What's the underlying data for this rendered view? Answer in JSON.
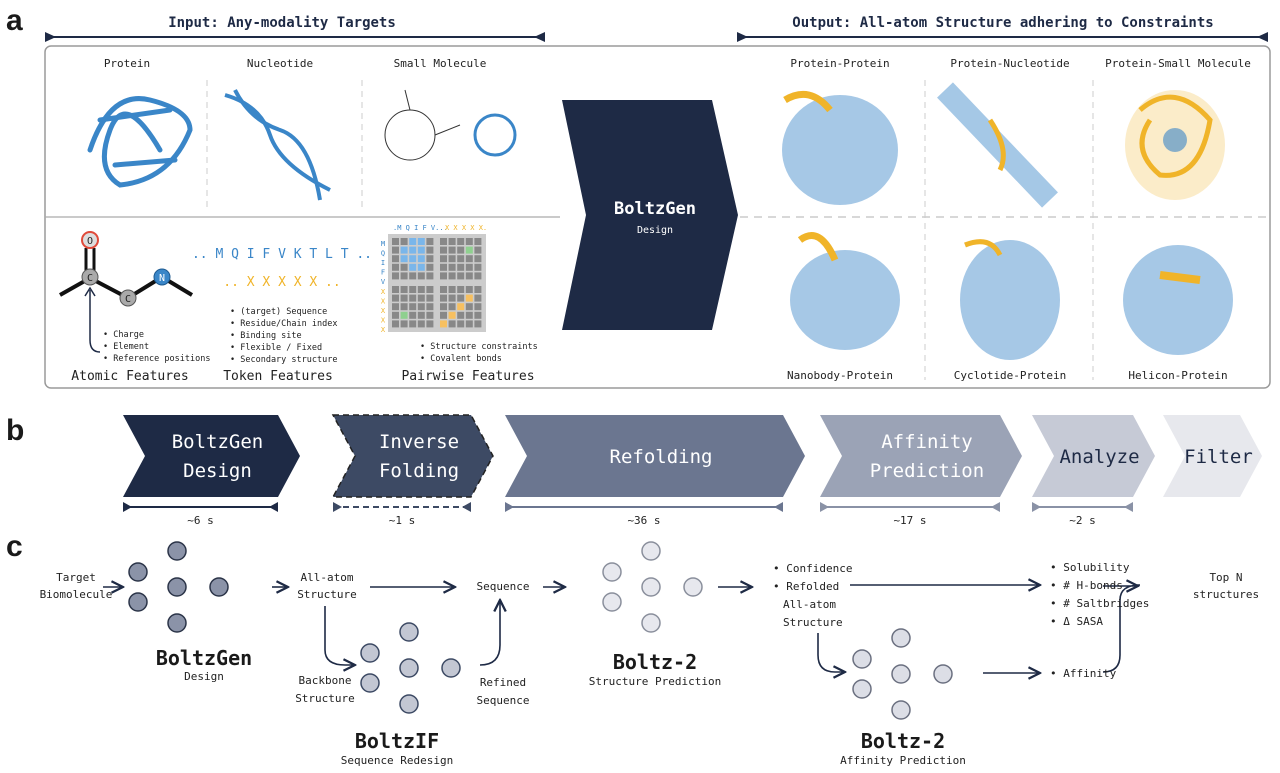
{
  "panel_labels": [
    "a",
    "b",
    "c"
  ],
  "a": {
    "input_header": "Input: Any-modality Targets",
    "output_header": "Output: All-atom Structure adhering to Constraints",
    "inputs": [
      "Protein",
      "Nucleotide",
      "Small Molecule"
    ],
    "outputs_top": [
      "Protein-Protein",
      "Protein-Nucleotide",
      "Protein-Small Molecule"
    ],
    "outputs_bottom": [
      "Nanobody-Protein",
      "Cyclotide-Protein",
      "Helicon-Protein"
    ],
    "center": {
      "title": "BoltzGen",
      "subtitle": "Design"
    },
    "atoms": {
      "o": "O",
      "c1": "C",
      "c2": "C",
      "n": "N"
    },
    "atomic": {
      "title": "Atomic Features",
      "items": [
        "• Charge",
        "• Element",
        "• Reference positions"
      ]
    },
    "token": {
      "title": "Token Features",
      "seq": ".. M Q I F V K T L T ..",
      "mask": ".. X X X X X ..",
      "items": [
        "• (target) Sequence",
        "• Residue/Chain index",
        "• Binding site",
        "• Flexible / Fixed",
        "• Secondary structure"
      ]
    },
    "pairwise": {
      "title": "Pairwise Features",
      "top_seq": ".M Q I F V...",
      "top_mask": "X X X X X.",
      "left_seq": "MQIFV",
      "left_mask": "XXXXX",
      "items": [
        "• Structure constraints",
        "• Covalent bonds"
      ]
    },
    "colors": {
      "protein": "#3a86c8",
      "binder": "#f0b429",
      "dark": "#1e2a45"
    }
  },
  "b": {
    "steps": [
      {
        "l1": "BoltzGen",
        "l2": "Design",
        "time": "~6 s",
        "color": "#1e2a45"
      },
      {
        "l1": "Inverse",
        "l2": "Folding",
        "time": "~1 s",
        "color": "#3d4a64"
      },
      {
        "l1": "Refolding",
        "l2": "",
        "time": "~36 s",
        "color": "#6b7690"
      },
      {
        "l1": "Affinity",
        "l2": "Prediction",
        "time": "~17 s",
        "color": "#9ba3b6"
      },
      {
        "l1": "Analyze",
        "l2": "",
        "time": "~2 s",
        "color": "#c6cad6"
      },
      {
        "l1": "Filter",
        "l2": "",
        "time": "",
        "color": "#e7e8ed"
      }
    ]
  },
  "c": {
    "target": [
      "Target",
      "Biomolecule"
    ],
    "allatom": [
      "All-atom",
      "Structure"
    ],
    "sequence": "Sequence",
    "backbone": [
      "Backbone",
      "Structure"
    ],
    "refined": [
      "Refined",
      "Sequence"
    ],
    "boltzgen": {
      "name": "BoltzGen",
      "role": "Design"
    },
    "boltzif": {
      "name": "BoltzIF",
      "role": "Sequence Redesign"
    },
    "boltz2s": {
      "name": "Boltz-2",
      "role": "Structure Prediction"
    },
    "boltz2a": {
      "name": "Boltz-2",
      "role": "Affinity Prediction"
    },
    "conf": [
      "• Confidence",
      "• Refolded",
      "All-atom",
      "Structure"
    ],
    "metrics": [
      "• Solubility",
      "• # H-bonds",
      "• # Saltbridges",
      "• Δ SASA"
    ],
    "affinity": "• Affinity",
    "top": [
      "Top N",
      "structures"
    ]
  }
}
